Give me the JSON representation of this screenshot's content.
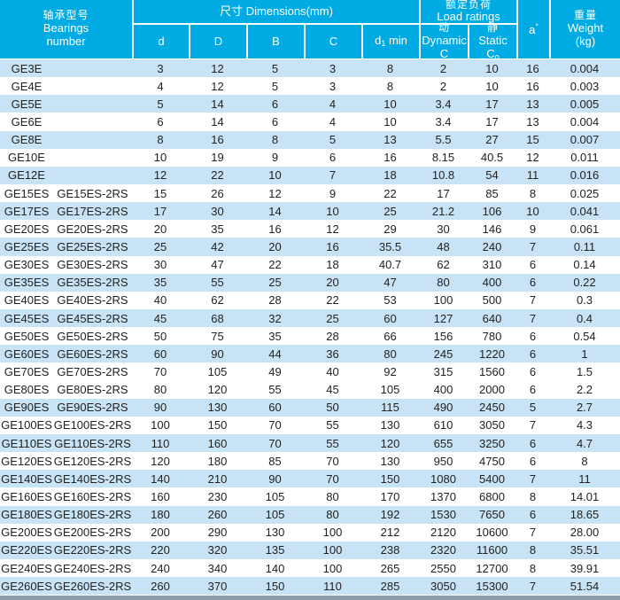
{
  "header": {
    "bearings_cn": "轴承型号",
    "bearings_en1": "Bearings",
    "bearings_en2": "number",
    "dimensions": "尺寸  Dimensions(mm)",
    "col_d": "d",
    "col_D": "D",
    "col_B": "B",
    "col_C": "C",
    "col_d1_pre": "d",
    "col_d1_sub": "1",
    "col_d1_post": "min",
    "load_cn": "额定负荷",
    "load_en": "Load ratings",
    "dyn_cn": "动",
    "dyn_en": "Dynamic",
    "dyn_sym": "C",
    "stat_cn": "静",
    "stat_en": "Static",
    "stat_sym_pre": "C",
    "stat_sym_sub": "o",
    "a_pre": "a",
    "a_sup": "°",
    "weight_cn": "重量",
    "weight_en": "Weight",
    "weight_unit": "(kg)"
  },
  "colors": {
    "header_cyan": "#00ABE4",
    "stripe_blue": "#C8E3F5",
    "row_white": "#FFFFFF",
    "footer_band": "#8B9DA7",
    "header_text": "#FFFFFF",
    "body_text": "#222222"
  },
  "rows": [
    {
      "name1": "GE3E",
      "name2": "",
      "d": "3",
      "D": "12",
      "B": "5",
      "C": "3",
      "d1": "8",
      "dyn": "2",
      "stat": "10",
      "a": "16",
      "wt": "0.004",
      "shade": "blue"
    },
    {
      "name1": "GE4E",
      "name2": "",
      "d": "4",
      "D": "12",
      "B": "5",
      "C": "3",
      "d1": "8",
      "dyn": "2",
      "stat": "10",
      "a": "16",
      "wt": "0.003",
      "shade": "white"
    },
    {
      "name1": "GE5E",
      "name2": "",
      "d": "5",
      "D": "14",
      "B": "6",
      "C": "4",
      "d1": "10",
      "dyn": "3.4",
      "stat": "17",
      "a": "13",
      "wt": "0.005",
      "shade": "blue"
    },
    {
      "name1": "GE6E",
      "name2": "",
      "d": "6",
      "D": "14",
      "B": "6",
      "C": "4",
      "d1": "10",
      "dyn": "3.4",
      "stat": "17",
      "a": "13",
      "wt": "0.004",
      "shade": "white"
    },
    {
      "name1": "GE8E",
      "name2": "",
      "d": "8",
      "D": "16",
      "B": "8",
      "C": "5",
      "d1": "13",
      "dyn": "5.5",
      "stat": "27",
      "a": "15",
      "wt": "0.007",
      "shade": "blue"
    },
    {
      "name1": "GE10E",
      "name2": "",
      "d": "10",
      "D": "19",
      "B": "9",
      "C": "6",
      "d1": "16",
      "dyn": "8.15",
      "stat": "40.5",
      "a": "12",
      "wt": "0.011",
      "shade": "white"
    },
    {
      "name1": "GE12E",
      "name2": "",
      "d": "12",
      "D": "22",
      "B": "10",
      "C": "7",
      "d1": "18",
      "dyn": "10.8",
      "stat": "54",
      "a": "11",
      "wt": "0.016",
      "shade": "blue"
    },
    {
      "name1": "GE15ES",
      "name2": "GE15ES-2RS",
      "d": "15",
      "D": "26",
      "B": "12",
      "C": "9",
      "d1": "22",
      "dyn": "17",
      "stat": "85",
      "a": "8",
      "wt": "0.025",
      "shade": "white"
    },
    {
      "name1": "GE17ES",
      "name2": "GE17ES-2RS",
      "d": "17",
      "D": "30",
      "B": "14",
      "C": "10",
      "d1": "25",
      "dyn": "21.2",
      "stat": "106",
      "a": "10",
      "wt": "0.041",
      "shade": "blue"
    },
    {
      "name1": "GE20ES",
      "name2": "GE20ES-2RS",
      "d": "20",
      "D": "35",
      "B": "16",
      "C": "12",
      "d1": "29",
      "dyn": "30",
      "stat": "146",
      "a": "9",
      "wt": "0.061",
      "shade": "white"
    },
    {
      "name1": "GE25ES",
      "name2": "GE25ES-2RS",
      "d": "25",
      "D": "42",
      "B": "20",
      "C": "16",
      "d1": "35.5",
      "dyn": "48",
      "stat": "240",
      "a": "7",
      "wt": "0.11",
      "shade": "blue"
    },
    {
      "name1": "GE30ES",
      "name2": "GE30ES-2RS",
      "d": "30",
      "D": "47",
      "B": "22",
      "C": "18",
      "d1": "40.7",
      "dyn": "62",
      "stat": "310",
      "a": "6",
      "wt": "0.14",
      "shade": "white"
    },
    {
      "name1": "GE35ES",
      "name2": "GE35ES-2RS",
      "d": "35",
      "D": "55",
      "B": "25",
      "C": "20",
      "d1": "47",
      "dyn": "80",
      "stat": "400",
      "a": "6",
      "wt": "0.22",
      "shade": "blue"
    },
    {
      "name1": "GE40ES",
      "name2": "GE40ES-2RS",
      "d": "40",
      "D": "62",
      "B": "28",
      "C": "22",
      "d1": "53",
      "dyn": "100",
      "stat": "500",
      "a": "7",
      "wt": "0.3",
      "shade": "white"
    },
    {
      "name1": "GE45ES",
      "name2": "GE45ES-2RS",
      "d": "45",
      "D": "68",
      "B": "32",
      "C": "25",
      "d1": "60",
      "dyn": "127",
      "stat": "640",
      "a": "7",
      "wt": "0.4",
      "shade": "blue"
    },
    {
      "name1": "GE50ES",
      "name2": "GE50ES-2RS",
      "d": "50",
      "D": "75",
      "B": "35",
      "C": "28",
      "d1": "66",
      "dyn": "156",
      "stat": "780",
      "a": "6",
      "wt": "0.54",
      "shade": "white"
    },
    {
      "name1": "GE60ES",
      "name2": "GE60ES-2RS",
      "d": "60",
      "D": "90",
      "B": "44",
      "C": "36",
      "d1": "80",
      "dyn": "245",
      "stat": "1220",
      "a": "6",
      "wt": "1",
      "shade": "blue"
    },
    {
      "name1": "GE70ES",
      "name2": "GE70ES-2RS",
      "d": "70",
      "D": "105",
      "B": "49",
      "C": "40",
      "d1": "92",
      "dyn": "315",
      "stat": "1560",
      "a": "6",
      "wt": "1.5",
      "shade": "white"
    },
    {
      "name1": "GE80ES",
      "name2": "GE80ES-2RS",
      "d": "80",
      "D": "120",
      "B": "55",
      "C": "45",
      "d1": "105",
      "dyn": "400",
      "stat": "2000",
      "a": "6",
      "wt": "2.2",
      "shade": "white"
    },
    {
      "name1": "GE90ES",
      "name2": "GE90ES-2RS",
      "d": "90",
      "D": "130",
      "B": "60",
      "C": "50",
      "d1": "115",
      "dyn": "490",
      "stat": "2450",
      "a": "5",
      "wt": "2.7",
      "shade": "blue"
    },
    {
      "name1": "GE100ES",
      "name2": "GE100ES-2RS",
      "d": "100",
      "D": "150",
      "B": "70",
      "C": "55",
      "d1": "130",
      "dyn": "610",
      "stat": "3050",
      "a": "7",
      "wt": "4.3",
      "shade": "white"
    },
    {
      "name1": "GE110ES",
      "name2": "GE110ES-2RS",
      "d": "110",
      "D": "160",
      "B": "70",
      "C": "55",
      "d1": "120",
      "dyn": "655",
      "stat": "3250",
      "a": "6",
      "wt": "4.7",
      "shade": "blue"
    },
    {
      "name1": "GE120ES",
      "name2": "GE120ES-2RS",
      "d": "120",
      "D": "180",
      "B": "85",
      "C": "70",
      "d1": "130",
      "dyn": "950",
      "stat": "4750",
      "a": "6",
      "wt": "8",
      "shade": "white"
    },
    {
      "name1": "GE140ES",
      "name2": "GE140ES-2RS",
      "d": "140",
      "D": "210",
      "B": "90",
      "C": "70",
      "d1": "150",
      "dyn": "1080",
      "stat": "5400",
      "a": "7",
      "wt": "11",
      "shade": "blue"
    },
    {
      "name1": "GE160ES",
      "name2": "GE160ES-2RS",
      "d": "160",
      "D": "230",
      "B": "105",
      "C": "80",
      "d1": "170",
      "dyn": "1370",
      "stat": "6800",
      "a": "8",
      "wt": "14.01",
      "shade": "white"
    },
    {
      "name1": "GE180ES",
      "name2": "GE180ES-2RS",
      "d": "180",
      "D": "260",
      "B": "105",
      "C": "80",
      "d1": "192",
      "dyn": "1530",
      "stat": "7650",
      "a": "6",
      "wt": "18.65",
      "shade": "blue"
    },
    {
      "name1": "GE200ES",
      "name2": "GE200ES-2RS",
      "d": "200",
      "D": "290",
      "B": "130",
      "C": "100",
      "d1": "212",
      "dyn": "2120",
      "stat": "10600",
      "a": "7",
      "wt": "28.00",
      "shade": "white"
    },
    {
      "name1": "GE220ES",
      "name2": "GE220ES-2RS",
      "d": "220",
      "D": "320",
      "B": "135",
      "C": "100",
      "d1": "238",
      "dyn": "2320",
      "stat": "11600",
      "a": "8",
      "wt": "35.51",
      "shade": "blue"
    },
    {
      "name1": "GE240ES",
      "name2": "GE240ES-2RS",
      "d": "240",
      "D": "340",
      "B": "140",
      "C": "100",
      "d1": "265",
      "dyn": "2550",
      "stat": "12700",
      "a": "8",
      "wt": "39.91",
      "shade": "white"
    },
    {
      "name1": "GE260ES",
      "name2": "GE260ES-2RS",
      "d": "260",
      "D": "370",
      "B": "150",
      "C": "110",
      "d1": "285",
      "dyn": "3050",
      "stat": "15300",
      "a": "7",
      "wt": "51.54",
      "shade": "blue"
    }
  ]
}
